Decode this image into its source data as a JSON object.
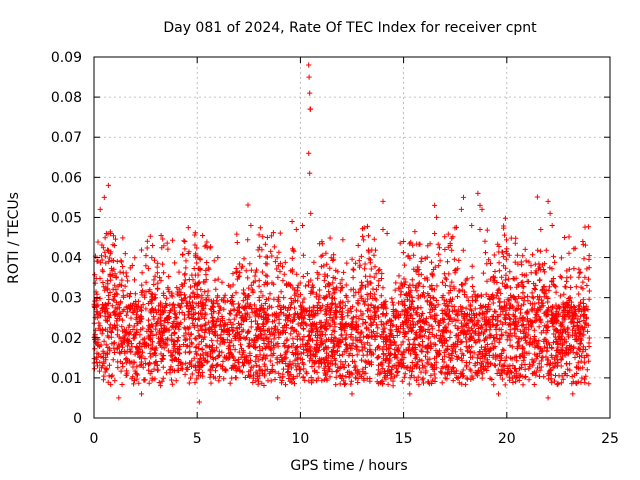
{
  "chart_data": {
    "type": "scatter",
    "title": "Day 081 of 2024, Rate Of TEC Index for receiver cpnt",
    "xlabel": "GPS time / hours",
    "ylabel": "ROTI / TECUs",
    "xlim": [
      0,
      25
    ],
    "ylim": [
      0,
      0.09
    ],
    "xticks": [
      0,
      5,
      10,
      15,
      20,
      25
    ],
    "xtick_labels": [
      "0",
      "5",
      "10",
      "15",
      "20",
      "25"
    ],
    "yticks": [
      0,
      0.01,
      0.02,
      0.03,
      0.04,
      0.05,
      0.06,
      0.07,
      0.08,
      0.09
    ],
    "ytick_labels": [
      "0",
      "0.01",
      "0.02",
      "0.03",
      "0.04",
      "0.05",
      "0.06",
      "0.07",
      "0.08",
      "0.09"
    ],
    "grid": true,
    "marker": "+",
    "color": "#ff0000",
    "series": [
      {
        "name": "ROTI",
        "data_span_hours": [
          0,
          24
        ],
        "typical_range": [
          0.005,
          0.035
        ],
        "sample_points": [
          [
            0.3,
            0.052
          ],
          [
            0.5,
            0.055
          ],
          [
            0.7,
            0.058
          ],
          [
            0.8,
            0.046
          ],
          [
            1.0,
            0.043
          ],
          [
            2.8,
            0.04
          ],
          [
            4.4,
            0.044
          ],
          [
            6.0,
            0.04
          ],
          [
            7.6,
            0.048
          ],
          [
            8.4,
            0.045
          ],
          [
            9.6,
            0.049
          ],
          [
            9.8,
            0.047
          ],
          [
            10.1,
            0.048
          ],
          [
            10.4,
            0.088
          ],
          [
            10.42,
            0.085
          ],
          [
            10.45,
            0.081
          ],
          [
            10.47,
            0.077
          ],
          [
            10.49,
            0.077
          ],
          [
            10.4,
            0.066
          ],
          [
            10.45,
            0.061
          ],
          [
            10.5,
            0.051
          ],
          [
            12.8,
            0.043
          ],
          [
            14.0,
            0.054
          ],
          [
            14.0,
            0.047
          ],
          [
            14.2,
            0.046
          ],
          [
            15.0,
            0.044
          ],
          [
            16.5,
            0.053
          ],
          [
            16.6,
            0.05
          ],
          [
            16.5,
            0.046
          ],
          [
            17.0,
            0.042
          ],
          [
            17.9,
            0.055
          ],
          [
            17.8,
            0.052
          ],
          [
            18.3,
            0.048
          ],
          [
            18.6,
            0.056
          ],
          [
            18.7,
            0.053
          ],
          [
            18.8,
            0.052
          ],
          [
            18.7,
            0.047
          ],
          [
            22.0,
            0.054
          ],
          [
            22.1,
            0.051
          ],
          [
            22.2,
            0.048
          ],
          [
            22.8,
            0.045
          ],
          [
            1.2,
            0.005
          ],
          [
            2.3,
            0.006
          ],
          [
            5.1,
            0.004
          ],
          [
            8.9,
            0.005
          ],
          [
            12.5,
            0.006
          ],
          [
            15.3,
            0.006
          ],
          [
            19.6,
            0.006
          ],
          [
            22.0,
            0.005
          ],
          [
            23.2,
            0.006
          ]
        ]
      }
    ]
  }
}
